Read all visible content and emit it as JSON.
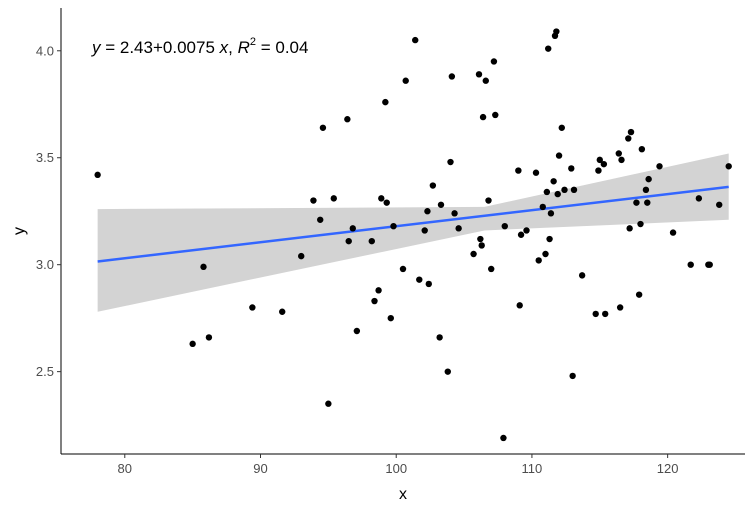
{
  "chart_data": {
    "type": "scatter",
    "title": "",
    "xlabel": "x",
    "ylabel": "y",
    "xlim": [
      75.3,
      125.7
    ],
    "ylim": [
      2.115,
      4.2
    ],
    "xticks": [
      80,
      90,
      100,
      110,
      120
    ],
    "yticks": [
      2.5,
      3.0,
      3.5,
      4.0
    ],
    "xtick_labels": [
      "80",
      "90",
      "100",
      "110",
      "120"
    ],
    "ytick_labels": [
      "2.5",
      "3.0",
      "3.5",
      "4.0"
    ],
    "grid": false,
    "legend": "none",
    "colors": {
      "points": "#000000",
      "fit_line": "#3366ff",
      "confidence_band": "#d3d3d3"
    },
    "annotation": {
      "y_var": "y",
      "equals": " = 2.43",
      "plus": "+",
      "coef": "0.0075 ",
      "x_var": "x",
      "sep": ", ",
      "r_var": "R",
      "r_exp": "2",
      "r_value": " = 0.04"
    },
    "fit": {
      "intercept": 2.43,
      "slope": 0.0075,
      "x_range": [
        78,
        124.5
      ],
      "ci_lower_start": 2.78,
      "ci_upper_start": 3.26,
      "ci_lower_end": 3.21,
      "ci_upper_end": 3.52,
      "ci_lower_mid": 3.16,
      "ci_upper_mid": 3.27,
      "x_mid": 106.5
    },
    "points": [
      {
        "x": 78.0,
        "y": 3.42
      },
      {
        "x": 85.0,
        "y": 2.63
      },
      {
        "x": 85.8,
        "y": 2.99
      },
      {
        "x": 86.2,
        "y": 2.66
      },
      {
        "x": 89.4,
        "y": 2.8
      },
      {
        "x": 91.6,
        "y": 2.78
      },
      {
        "x": 93.0,
        "y": 3.04
      },
      {
        "x": 93.9,
        "y": 3.3
      },
      {
        "x": 94.4,
        "y": 3.21
      },
      {
        "x": 94.6,
        "y": 3.64
      },
      {
        "x": 95.0,
        "y": 2.35
      },
      {
        "x": 95.4,
        "y": 3.31
      },
      {
        "x": 96.4,
        "y": 3.68
      },
      {
        "x": 96.5,
        "y": 3.11
      },
      {
        "x": 96.8,
        "y": 3.17
      },
      {
        "x": 97.1,
        "y": 2.69
      },
      {
        "x": 98.2,
        "y": 3.11
      },
      {
        "x": 98.4,
        "y": 2.83
      },
      {
        "x": 98.7,
        "y": 2.88
      },
      {
        "x": 98.9,
        "y": 3.31
      },
      {
        "x": 99.2,
        "y": 3.76
      },
      {
        "x": 99.3,
        "y": 3.29
      },
      {
        "x": 99.6,
        "y": 2.75
      },
      {
        "x": 99.8,
        "y": 3.18
      },
      {
        "x": 100.5,
        "y": 2.98
      },
      {
        "x": 100.7,
        "y": 3.86
      },
      {
        "x": 101.4,
        "y": 4.05
      },
      {
        "x": 101.7,
        "y": 2.93
      },
      {
        "x": 102.1,
        "y": 3.16
      },
      {
        "x": 102.3,
        "y": 3.25
      },
      {
        "x": 102.4,
        "y": 2.91
      },
      {
        "x": 102.7,
        "y": 3.37
      },
      {
        "x": 103.2,
        "y": 2.66
      },
      {
        "x": 103.3,
        "y": 3.28
      },
      {
        "x": 103.8,
        "y": 2.5
      },
      {
        "x": 104.0,
        "y": 3.48
      },
      {
        "x": 104.1,
        "y": 3.88
      },
      {
        "x": 104.3,
        "y": 3.24
      },
      {
        "x": 104.6,
        "y": 3.17
      },
      {
        "x": 105.7,
        "y": 3.05
      },
      {
        "x": 106.1,
        "y": 3.89
      },
      {
        "x": 106.2,
        "y": 3.12
      },
      {
        "x": 106.3,
        "y": 3.09
      },
      {
        "x": 106.4,
        "y": 3.69
      },
      {
        "x": 106.6,
        "y": 3.86
      },
      {
        "x": 106.8,
        "y": 3.3
      },
      {
        "x": 107.0,
        "y": 2.98
      },
      {
        "x": 107.2,
        "y": 3.95
      },
      {
        "x": 107.3,
        "y": 3.7
      },
      {
        "x": 107.9,
        "y": 2.19
      },
      {
        "x": 108.0,
        "y": 3.18
      },
      {
        "x": 109.0,
        "y": 3.44
      },
      {
        "x": 109.1,
        "y": 2.81
      },
      {
        "x": 109.2,
        "y": 3.14
      },
      {
        "x": 109.6,
        "y": 3.16
      },
      {
        "x": 110.3,
        "y": 3.43
      },
      {
        "x": 110.5,
        "y": 3.02
      },
      {
        "x": 110.8,
        "y": 3.27
      },
      {
        "x": 111.0,
        "y": 3.05
      },
      {
        "x": 111.1,
        "y": 3.34
      },
      {
        "x": 111.2,
        "y": 4.01
      },
      {
        "x": 111.3,
        "y": 3.12
      },
      {
        "x": 111.4,
        "y": 3.24
      },
      {
        "x": 111.6,
        "y": 3.39
      },
      {
        "x": 111.7,
        "y": 4.07
      },
      {
        "x": 111.8,
        "y": 4.09
      },
      {
        "x": 111.9,
        "y": 3.33
      },
      {
        "x": 112.0,
        "y": 3.51
      },
      {
        "x": 112.2,
        "y": 3.64
      },
      {
        "x": 112.4,
        "y": 3.35
      },
      {
        "x": 112.9,
        "y": 3.45
      },
      {
        "x": 113.0,
        "y": 2.48
      },
      {
        "x": 113.1,
        "y": 3.35
      },
      {
        "x": 113.7,
        "y": 2.95
      },
      {
        "x": 114.7,
        "y": 2.77
      },
      {
        "x": 114.9,
        "y": 3.44
      },
      {
        "x": 115.0,
        "y": 3.49
      },
      {
        "x": 115.3,
        "y": 3.47
      },
      {
        "x": 115.4,
        "y": 2.77
      },
      {
        "x": 116.4,
        "y": 3.52
      },
      {
        "x": 116.5,
        "y": 2.8
      },
      {
        "x": 116.6,
        "y": 3.49
      },
      {
        "x": 117.1,
        "y": 3.59
      },
      {
        "x": 117.2,
        "y": 3.17
      },
      {
        "x": 117.3,
        "y": 3.62
      },
      {
        "x": 117.7,
        "y": 3.29
      },
      {
        "x": 117.9,
        "y": 2.86
      },
      {
        "x": 118.0,
        "y": 3.19
      },
      {
        "x": 118.1,
        "y": 3.54
      },
      {
        "x": 118.4,
        "y": 3.35
      },
      {
        "x": 118.5,
        "y": 3.29
      },
      {
        "x": 118.6,
        "y": 3.4
      },
      {
        "x": 119.4,
        "y": 3.46
      },
      {
        "x": 120.4,
        "y": 3.15
      },
      {
        "x": 121.7,
        "y": 3.0
      },
      {
        "x": 122.3,
        "y": 3.31
      },
      {
        "x": 123.0,
        "y": 3.0
      },
      {
        "x": 123.1,
        "y": 3.0
      },
      {
        "x": 123.8,
        "y": 3.28
      },
      {
        "x": 124.5,
        "y": 3.46
      }
    ]
  }
}
